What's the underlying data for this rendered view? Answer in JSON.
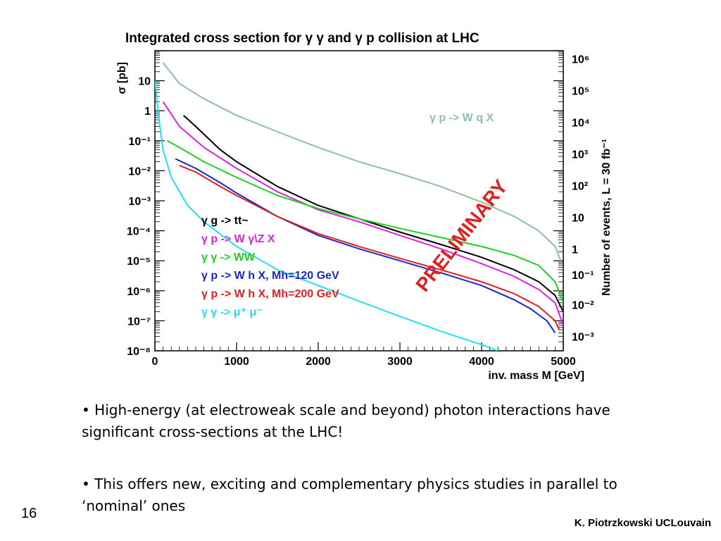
{
  "slide": {
    "page_number": "16",
    "author": "K. Piotrzkowski UCLouvain",
    "bullets": [
      "• High-energy (at electroweak scale and beyond) photon interactions have significant cross-sections at the LHC!",
      "• This offers new, exciting and complementary physics studies in parallel to ‘nominal’ ones"
    ]
  },
  "chart_data": {
    "type": "line",
    "title": "Integrated cross section for γ γ and γ p collision at LHC",
    "xlabel": "inv. mass  M [GeV]",
    "ylabel": "σ [pb]",
    "ylabel_right": "Number of events,  L = 30 fb⁻¹",
    "xlim": [
      0,
      5000
    ],
    "ylim": [
      1e-08,
      100
    ],
    "y_scale": "log",
    "x_ticks": [
      "0",
      "1000",
      "2000",
      "3000",
      "4000",
      "5000"
    ],
    "y_ticks_left": [
      "10⁻⁸",
      "10⁻⁷",
      "10⁻⁶",
      "10⁻⁵",
      "10⁻⁴",
      "10⁻³",
      "10⁻²",
      "10⁻¹",
      "1",
      "10"
    ],
    "y_ticks_right": [
      "10⁻³",
      "10⁻²",
      "10⁻¹",
      "1",
      "10",
      "10²",
      "10³",
      "10⁴",
      "10⁵",
      "10⁶"
    ],
    "grid": false,
    "legend_position": "center-left",
    "annotations": [
      {
        "text": "γ p -> W q X",
        "color": "#8fbfa8"
      },
      {
        "text": "PRELIMINARY",
        "color": "#e02020"
      }
    ],
    "series": [
      {
        "name": "γ p -> W q X",
        "color": "#8fbfa8",
        "in_legend": false,
        "x": [
          100,
          300,
          600,
          1000,
          1500,
          2000,
          2500,
          3000,
          3500,
          4000,
          4400,
          4700,
          4900,
          4970
        ],
        "y": [
          40,
          8,
          2.5,
          0.7,
          0.2,
          0.06,
          0.02,
          0.008,
          0.003,
          0.0009,
          0.0003,
          0.0001,
          3e-05,
          1e-05
        ]
      },
      {
        "name": "γ g -> tt~",
        "color": "#000000",
        "in_legend": true,
        "x": [
          350,
          500,
          800,
          1000,
          1500,
          2000,
          2500,
          3000,
          3500,
          4000,
          4400,
          4700,
          4900,
          5000
        ],
        "y": [
          0.7,
          0.3,
          0.05,
          0.02,
          0.003,
          0.0007,
          0.00025,
          9e-05,
          3.5e-05,
          1.3e-05,
          5e-06,
          2e-06,
          7e-07,
          2e-07
        ]
      },
      {
        "name": "γ p -> W γ\\Z X",
        "color": "#e020e0",
        "in_legend": true,
        "x": [
          100,
          300,
          600,
          1000,
          1500,
          2000,
          2500,
          3000,
          3500,
          4000,
          4400,
          4700,
          4900,
          5000
        ],
        "y": [
          2,
          0.3,
          0.06,
          0.012,
          0.002,
          0.0005,
          0.0002,
          7e-05,
          2.5e-05,
          8e-06,
          3e-06,
          1.1e-06,
          4e-07,
          7e-08
        ]
      },
      {
        "name": "γ γ -> WW",
        "color": "#20d020",
        "in_legend": true,
        "x": [
          150,
          300,
          600,
          1000,
          1500,
          2000,
          2500,
          3000,
          3500,
          4000,
          4400,
          4700,
          4900,
          5000
        ],
        "y": [
          0.1,
          0.06,
          0.02,
          0.006,
          0.0015,
          0.00055,
          0.00025,
          0.00012,
          6e-05,
          3e-05,
          1.5e-05,
          7e-06,
          2e-06,
          4e-07
        ]
      },
      {
        "name": "γ p -> W h X, Mh=120 GeV",
        "color": "#1a28c8",
        "in_legend": true,
        "x": [
          250,
          500,
          800,
          1000,
          1500,
          2000,
          2500,
          3000,
          3500,
          4000,
          4400,
          4600,
          4800,
          4900
        ],
        "y": [
          0.025,
          0.012,
          0.004,
          0.0018,
          0.0003,
          7e-05,
          2.5e-05,
          1e-05,
          4e-06,
          1.5e-06,
          5e-07,
          2.5e-07,
          1e-07,
          4e-08
        ]
      },
      {
        "name": "γ p -> W h X, Mh=200 GeV",
        "color": "#e02020",
        "in_legend": true,
        "x": [
          300,
          500,
          800,
          1000,
          1500,
          2000,
          2500,
          3000,
          3500,
          4000,
          4400,
          4700,
          4900,
          4950
        ],
        "y": [
          0.015,
          0.009,
          0.003,
          0.0015,
          0.0003,
          8e-05,
          3e-05,
          1.2e-05,
          5e-06,
          2e-06,
          8e-07,
          3e-07,
          1e-07,
          5e-08
        ]
      },
      {
        "name": "γ γ -> μ⁺ μ⁻",
        "color": "#20e0f0",
        "in_legend": true,
        "x": [
          0,
          50,
          100,
          200,
          400,
          600,
          1000,
          1500,
          2000,
          2500,
          3000,
          3500,
          4000,
          4200
        ],
        "y": [
          10,
          0.5,
          0.05,
          0.006,
          0.0007,
          0.0002,
          3e-05,
          5e-06,
          1.5e-06,
          4.5e-07,
          1.4e-07,
          4.5e-08,
          1.6e-08,
          1e-08
        ]
      }
    ]
  }
}
